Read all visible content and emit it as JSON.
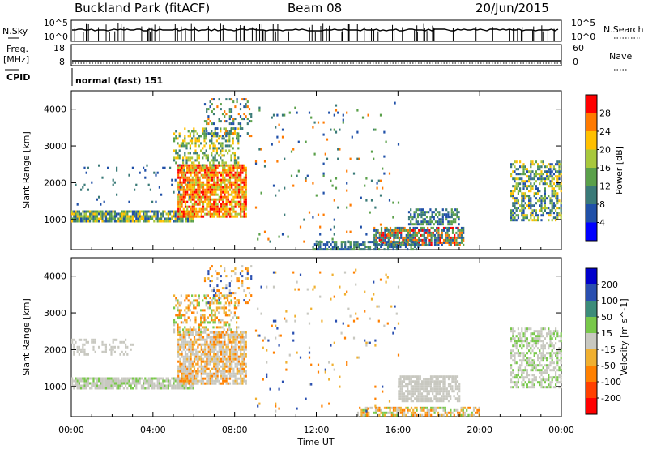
{
  "header": {
    "station": "Buckland Park (fitACF)",
    "beam": "Beam 08",
    "date": "20/Jun/2015"
  },
  "top_panels": {
    "nsky_label": "N.Sky",
    "nsearch_label": "N.Search",
    "nsky_ticks": [
      "10^5",
      "10^0"
    ],
    "nsearch_ticks": [
      "10^5",
      "10^0"
    ],
    "freq_label_line1": "Freq.",
    "freq_label_line2": "[MHz]",
    "freq_ticks": [
      "18",
      "8"
    ],
    "nave_label": "Nave",
    "nave_ticks": [
      "60",
      "0"
    ],
    "cpid_label": "CPID",
    "cpid_text": "normal (fast) 151"
  },
  "chart_data": [
    {
      "type": "heatmap",
      "parameter": "Power",
      "ylabel": "Slant Range [km]",
      "yticks": [
        "1000",
        "2000",
        "3000",
        "4000"
      ],
      "ylim": [
        180,
        4500
      ],
      "xlim": [
        "00:00",
        "24:00"
      ],
      "colorbar": {
        "label": "Power [dB]",
        "ticks": [
          "4",
          "8",
          "12",
          "16",
          "20",
          "24",
          "28"
        ],
        "colors": [
          "#0000ff",
          "#2050a8",
          "#3a7a78",
          "#5aa04a",
          "#a8c83c",
          "#ffc000",
          "#ff7a00",
          "#ff0000"
        ]
      }
    },
    {
      "type": "heatmap",
      "parameter": "Velocity",
      "ylabel": "Slant Range [km]",
      "yticks": [
        "1000",
        "2000",
        "3000",
        "4000"
      ],
      "ylim": [
        180,
        4500
      ],
      "xlabel": "Time UT",
      "xticks": [
        "00:00",
        "04:00",
        "08:00",
        "12:00",
        "16:00",
        "20:00",
        "00:00"
      ],
      "colorbar": {
        "label": "Velocity [m s^-1]",
        "ticks": [
          "200",
          "100",
          "50",
          "15",
          "-15",
          "-50",
          "-100",
          "-200"
        ],
        "colors": [
          "#0000cc",
          "#2a4fb0",
          "#3c8c7a",
          "#78c84a",
          "#c8c8c0",
          "#f0b030",
          "#ff8000",
          "#ff4000",
          "#ff0000"
        ]
      }
    }
  ]
}
